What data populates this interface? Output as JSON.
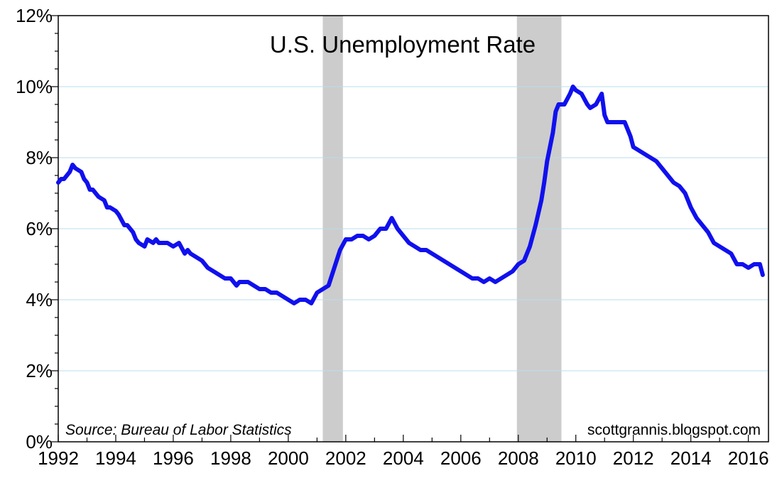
{
  "chart_data": {
    "type": "line",
    "title": "U.S. Unemployment Rate",
    "xlabel": "",
    "ylabel": "",
    "source": "Source:  Bureau of Labor Statistics",
    "credit": "scottgrannis.blogspot.com",
    "xlim": [
      1992,
      2016.7
    ],
    "ylim": [
      0,
      12
    ],
    "x_ticks": [
      1992,
      1994,
      1996,
      1998,
      2000,
      2002,
      2004,
      2006,
      2008,
      2010,
      2012,
      2014,
      2016
    ],
    "x_tick_labels": [
      "1992",
      "1994",
      "1996",
      "1998",
      "2000",
      "2002",
      "2004",
      "2006",
      "2008",
      "2010",
      "2012",
      "2014",
      "2016"
    ],
    "y_ticks": [
      0,
      2,
      4,
      6,
      8,
      10,
      12
    ],
    "y_tick_labels": [
      "0%",
      "2%",
      "4%",
      "6%",
      "8%",
      "10%",
      "12%"
    ],
    "grid": "horizontal",
    "colors": {
      "line": "#1010ee",
      "recession": "#cccccc",
      "grid": "#b9dcec"
    },
    "recessions": [
      [
        2001.2,
        2001.9
      ],
      [
        2007.95,
        2009.5
      ]
    ],
    "series": [
      {
        "name": "",
        "x": [
          1992.0,
          1992.1,
          1992.2,
          1992.4,
          1992.5,
          1992.6,
          1992.8,
          1992.9,
          1993.0,
          1993.1,
          1993.2,
          1993.4,
          1993.6,
          1993.7,
          1993.8,
          1994.0,
          1994.1,
          1994.3,
          1994.4,
          1994.6,
          1994.7,
          1994.8,
          1995.0,
          1995.1,
          1995.3,
          1995.4,
          1995.5,
          1995.6,
          1995.8,
          1996.0,
          1996.2,
          1996.4,
          1996.5,
          1996.6,
          1996.8,
          1997.0,
          1997.2,
          1997.4,
          1997.6,
          1997.8,
          1998.0,
          1998.2,
          1998.3,
          1998.5,
          1998.6,
          1998.8,
          1999.0,
          1999.2,
          1999.4,
          1999.6,
          1999.8,
          2000.0,
          2000.2,
          2000.4,
          2000.6,
          2000.8,
          2001.0,
          2001.2,
          2001.4,
          2001.6,
          2001.8,
          2002.0,
          2002.2,
          2002.4,
          2002.6,
          2002.8,
          2003.0,
          2003.2,
          2003.4,
          2003.6,
          2003.8,
          2004.0,
          2004.2,
          2004.4,
          2004.6,
          2004.8,
          2005.0,
          2005.2,
          2005.4,
          2005.6,
          2005.8,
          2006.0,
          2006.2,
          2006.4,
          2006.6,
          2006.8,
          2007.0,
          2007.2,
          2007.4,
          2007.6,
          2007.8,
          2008.0,
          2008.2,
          2008.4,
          2008.6,
          2008.8,
          2008.9,
          2009.0,
          2009.2,
          2009.3,
          2009.4,
          2009.6,
          2009.8,
          2009.9,
          2010.0,
          2010.2,
          2010.4,
          2010.5,
          2010.7,
          2010.9,
          2011.0,
          2011.1,
          2011.3,
          2011.5,
          2011.7,
          2011.9,
          2012.0,
          2012.2,
          2012.4,
          2012.6,
          2012.8,
          2013.0,
          2013.2,
          2013.4,
          2013.6,
          2013.8,
          2014.0,
          2014.2,
          2014.4,
          2014.6,
          2014.8,
          2015.0,
          2015.2,
          2015.4,
          2015.6,
          2015.8,
          2016.0,
          2016.2,
          2016.4,
          2016.5
        ],
        "y": [
          7.3,
          7.4,
          7.4,
          7.6,
          7.8,
          7.7,
          7.6,
          7.4,
          7.3,
          7.1,
          7.1,
          6.9,
          6.8,
          6.6,
          6.6,
          6.5,
          6.4,
          6.1,
          6.1,
          5.9,
          5.7,
          5.6,
          5.5,
          5.7,
          5.6,
          5.7,
          5.6,
          5.6,
          5.6,
          5.5,
          5.6,
          5.3,
          5.4,
          5.3,
          5.2,
          5.1,
          4.9,
          4.8,
          4.7,
          4.6,
          4.6,
          4.4,
          4.5,
          4.5,
          4.5,
          4.4,
          4.3,
          4.3,
          4.2,
          4.2,
          4.1,
          4.0,
          3.9,
          4.0,
          4.0,
          3.9,
          4.2,
          4.3,
          4.4,
          4.9,
          5.4,
          5.7,
          5.7,
          5.8,
          5.8,
          5.7,
          5.8,
          6.0,
          6.0,
          6.3,
          6.0,
          5.8,
          5.6,
          5.5,
          5.4,
          5.4,
          5.3,
          5.2,
          5.1,
          5.0,
          4.9,
          4.8,
          4.7,
          4.6,
          4.6,
          4.5,
          4.6,
          4.5,
          4.6,
          4.7,
          4.8,
          5.0,
          5.1,
          5.5,
          6.1,
          6.8,
          7.3,
          7.9,
          8.7,
          9.3,
          9.5,
          9.5,
          9.8,
          10.0,
          9.9,
          9.8,
          9.5,
          9.4,
          9.5,
          9.8,
          9.2,
          9.0,
          9.0,
          9.0,
          9.0,
          8.6,
          8.3,
          8.2,
          8.1,
          8.0,
          7.9,
          7.7,
          7.5,
          7.3,
          7.2,
          7.0,
          6.6,
          6.3,
          6.1,
          5.9,
          5.6,
          5.5,
          5.4,
          5.3,
          5.0,
          5.0,
          4.9,
          5.0,
          5.0,
          4.7
        ]
      }
    ]
  }
}
